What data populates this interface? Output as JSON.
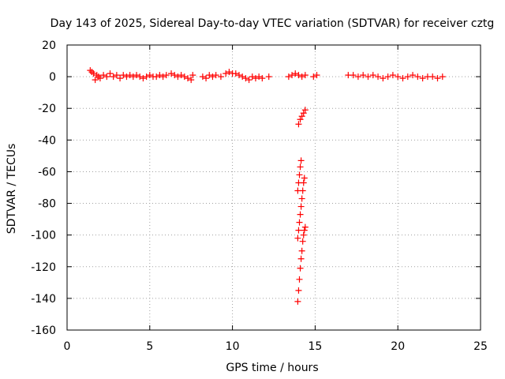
{
  "chart_data": {
    "type": "scatter",
    "title": "Day 143 of 2025, Sidereal Day-to-day VTEC variation (SDTVAR) for receiver cztg",
    "xlabel": "GPS time / hours",
    "ylabel": "SDTVAR / TECUs",
    "xlim": [
      0,
      25
    ],
    "ylim": [
      -160,
      20
    ],
    "xticks": [
      0,
      5,
      10,
      15,
      20,
      25
    ],
    "yticks": [
      20,
      0,
      -20,
      -40,
      -60,
      -80,
      -100,
      -120,
      -140,
      -160
    ],
    "grid": true,
    "marker": "plus",
    "marker_color": "#ff0000",
    "series": [
      {
        "points": [
          [
            1.4,
            4
          ],
          [
            1.5,
            3
          ],
          [
            1.6,
            2
          ],
          [
            1.7,
            -2
          ],
          [
            1.8,
            1
          ],
          [
            1.9,
            0
          ],
          [
            2.0,
            -1
          ],
          [
            2.2,
            1
          ],
          [
            2.4,
            0
          ],
          [
            2.6,
            2
          ],
          [
            2.8,
            0
          ],
          [
            3.0,
            1
          ],
          [
            3.2,
            -1
          ],
          [
            3.4,
            1
          ],
          [
            3.6,
            0
          ],
          [
            3.8,
            1
          ],
          [
            4.0,
            0
          ],
          [
            4.2,
            1
          ],
          [
            4.4,
            0
          ],
          [
            4.6,
            -1
          ],
          [
            4.8,
            0
          ],
          [
            5.0,
            1
          ],
          [
            5.2,
            0
          ],
          [
            5.4,
            0
          ],
          [
            5.6,
            1
          ],
          [
            5.8,
            0
          ],
          [
            6.0,
            1
          ],
          [
            6.3,
            2
          ],
          [
            6.5,
            1
          ],
          [
            6.7,
            0
          ],
          [
            6.9,
            1
          ],
          [
            7.1,
            0
          ],
          [
            7.3,
            -1
          ],
          [
            7.5,
            -2
          ],
          [
            7.6,
            1
          ],
          [
            8.2,
            0
          ],
          [
            8.4,
            -1
          ],
          [
            8.6,
            1
          ],
          [
            8.8,
            0
          ],
          [
            9.0,
            1
          ],
          [
            9.3,
            0
          ],
          [
            9.6,
            2
          ],
          [
            9.8,
            3
          ],
          [
            10.0,
            2
          ],
          [
            10.2,
            2
          ],
          [
            10.4,
            1
          ],
          [
            10.6,
            0
          ],
          [
            10.8,
            -1
          ],
          [
            11.0,
            -2
          ],
          [
            11.2,
            0
          ],
          [
            11.4,
            -1
          ],
          [
            11.6,
            0
          ],
          [
            11.8,
            -1
          ],
          [
            12.2,
            0
          ],
          [
            13.4,
            0
          ],
          [
            13.6,
            1
          ],
          [
            13.8,
            2
          ],
          [
            14.0,
            1
          ],
          [
            14.2,
            0
          ],
          [
            14.4,
            1
          ],
          [
            14.9,
            0
          ],
          [
            15.1,
            1
          ],
          [
            17.0,
            1
          ],
          [
            17.3,
            1
          ],
          [
            17.6,
            0
          ],
          [
            17.9,
            1
          ],
          [
            18.2,
            0
          ],
          [
            18.5,
            1
          ],
          [
            18.8,
            0
          ],
          [
            19.1,
            -1
          ],
          [
            19.4,
            0
          ],
          [
            19.7,
            1
          ],
          [
            20.0,
            0
          ],
          [
            20.3,
            -1
          ],
          [
            20.6,
            0
          ],
          [
            20.9,
            1
          ],
          [
            21.2,
            0
          ],
          [
            21.5,
            -1
          ],
          [
            21.8,
            0
          ],
          [
            22.1,
            0
          ],
          [
            22.4,
            -1
          ],
          [
            22.7,
            0
          ],
          [
            14.0,
            -30
          ],
          [
            14.1,
            -27
          ],
          [
            14.2,
            -25
          ],
          [
            14.3,
            -23
          ],
          [
            14.4,
            -21
          ],
          [
            13.95,
            -72
          ],
          [
            14.0,
            -67
          ],
          [
            14.05,
            -62
          ],
          [
            14.1,
            -57
          ],
          [
            14.15,
            -53
          ],
          [
            13.95,
            -102
          ],
          [
            14.0,
            -97
          ],
          [
            14.05,
            -92
          ],
          [
            14.1,
            -87
          ],
          [
            14.15,
            -82
          ],
          [
            14.2,
            -77
          ],
          [
            14.25,
            -72
          ],
          [
            14.3,
            -67
          ],
          [
            14.35,
            -64
          ],
          [
            13.95,
            -142
          ],
          [
            14.0,
            -135
          ],
          [
            14.05,
            -128
          ],
          [
            14.1,
            -121
          ],
          [
            14.15,
            -115
          ],
          [
            14.2,
            -110
          ],
          [
            14.25,
            -104
          ],
          [
            14.3,
            -100
          ],
          [
            14.35,
            -97
          ],
          [
            14.4,
            -95
          ]
        ]
      }
    ]
  }
}
